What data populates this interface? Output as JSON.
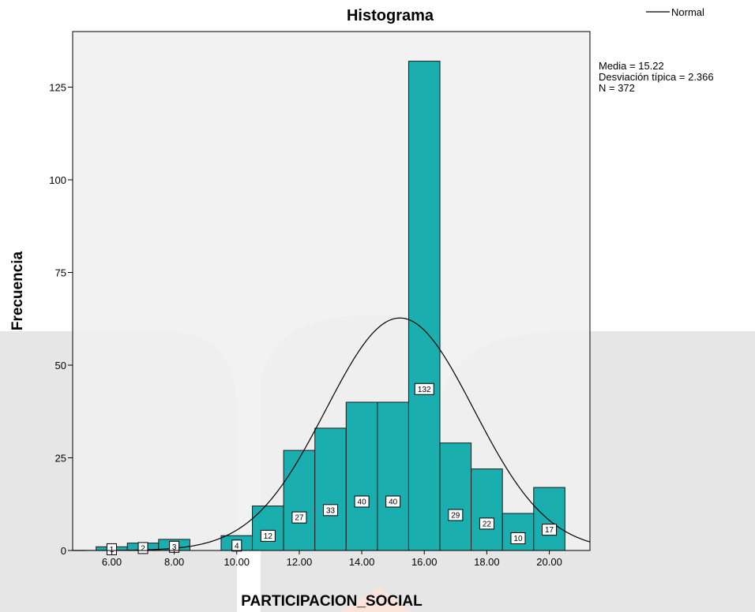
{
  "chart_data": {
    "type": "bar",
    "title": "Histograma",
    "xlabel": "PARTICIPACION_SOCIAL",
    "ylabel": "Frecuencia",
    "bins": [
      {
        "x": 6,
        "value": 1,
        "label": "1"
      },
      {
        "x": 7,
        "value": 2,
        "label": "2"
      },
      {
        "x": 8,
        "value": 3,
        "label": "3"
      },
      {
        "x": 10,
        "value": 4,
        "label": "4"
      },
      {
        "x": 11,
        "value": 12,
        "label": "12"
      },
      {
        "x": 12,
        "value": 27,
        "label": "27"
      },
      {
        "x": 13,
        "value": 33,
        "label": "33"
      },
      {
        "x": 14,
        "value": 40,
        "label": "40"
      },
      {
        "x": 15,
        "value": 40,
        "label": "40"
      },
      {
        "x": 16,
        "value": 132,
        "label": "132"
      },
      {
        "x": 17,
        "value": 29,
        "label": "29"
      },
      {
        "x": 18,
        "value": 22,
        "label": "22"
      },
      {
        "x": 19,
        "value": 10,
        "label": "10"
      },
      {
        "x": 20,
        "value": 17,
        "label": "17"
      }
    ],
    "bin_width": 1,
    "xlim": [
      4.75,
      21.3
    ],
    "ylim": [
      0,
      140
    ],
    "x_ticks": [
      {
        "value": 6,
        "label": "6.00"
      },
      {
        "value": 8,
        "label": "8.00"
      },
      {
        "value": 10,
        "label": "10.00"
      },
      {
        "value": 12,
        "label": "12.00"
      },
      {
        "value": 14,
        "label": "14.00"
      },
      {
        "value": 16,
        "label": "16.00"
      },
      {
        "value": 18,
        "label": "18.00"
      },
      {
        "value": 20,
        "label": "20.00"
      }
    ],
    "y_ticks": [
      {
        "value": 0,
        "label": "0"
      },
      {
        "value": 25,
        "label": "25"
      },
      {
        "value": 50,
        "label": "50"
      },
      {
        "value": 75,
        "label": "75"
      },
      {
        "value": 100,
        "label": "100"
      },
      {
        "value": 125,
        "label": "125"
      }
    ],
    "normal_curve": {
      "mean": 15.22,
      "sd": 2.366,
      "n": 372
    },
    "stats": [
      "Media = 15.22",
      "Desviación típica = 2.366",
      "N = 372"
    ],
    "legend": [
      {
        "name": "Normal",
        "marker": "line",
        "position": "top-right"
      }
    ],
    "grid": false,
    "colors": {
      "bar_fill": "#1aaeae",
      "bar_stroke": "#1a1a1a",
      "plot_background": "#f0f0f0",
      "curve": "#000000",
      "watermark": "#e6e6e6",
      "watermark_accent": "#fbe3dc"
    }
  }
}
